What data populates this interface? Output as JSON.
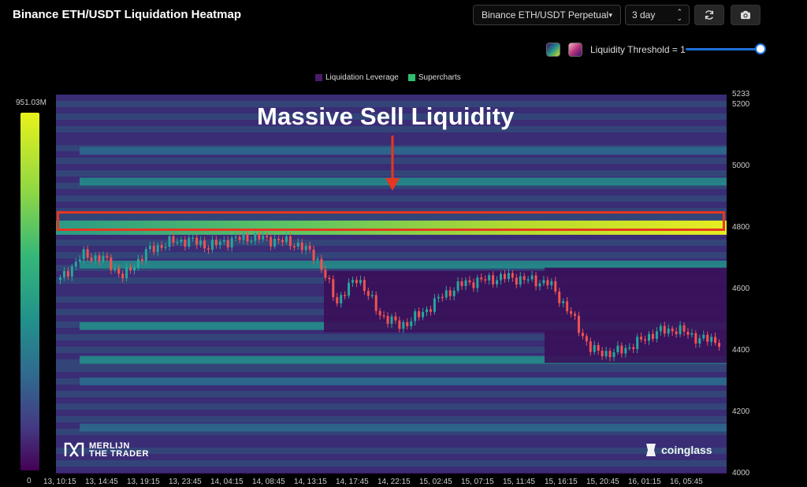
{
  "header": {
    "title": "Binance ETH/USDT Liquidation Heatmap"
  },
  "controls": {
    "pair_select": "Binance ETH/USDT Perpetual",
    "range_select": "3 day",
    "threshold_label": "Liquidity Threshold = 1",
    "threshold_value": 1
  },
  "icons": {
    "refresh": "refresh-icon",
    "camera": "camera-icon",
    "dropdown": "chevron-down-icon",
    "stepper": "up-down-arrows-icon"
  },
  "legend": [
    {
      "label": "Liquidation Leverage",
      "color": "#4a1a6b"
    },
    {
      "label": "Supercharts",
      "color": "#2fbf71"
    }
  ],
  "scale": {
    "max_label": "951.03M",
    "min_label": "0"
  },
  "annotation": {
    "text": "Massive Sell Liquidity",
    "highlight_color": "#e8361f",
    "arrow_color": "#e8361f"
  },
  "watermarks": {
    "left": "MERLIJN THE TRADER",
    "left_line1": "MERLIJN",
    "left_line2": "THE TRADER",
    "right": "coinglass"
  },
  "chart_data": {
    "type": "heatmap",
    "title": "Binance ETH/USDT Liquidation Heatmap",
    "y_ticks": [
      "5233",
      "5200",
      "5000",
      "4800",
      "4600",
      "4400",
      "4200",
      "4000"
    ],
    "y_tick_values": [
      5233,
      5200,
      5000,
      4800,
      4600,
      4400,
      4200,
      4000
    ],
    "ylim": [
      4000,
      5233
    ],
    "x_ticks": [
      "13, 10:15",
      "13, 14:45",
      "13, 19:15",
      "13, 23:45",
      "14, 04:15",
      "14, 08:45",
      "14, 13:15",
      "14, 17:45",
      "14, 22:15",
      "15, 02:45",
      "15, 07:15",
      "15, 11:45",
      "15, 16:15",
      "15, 20:45",
      "16, 01:15",
      "16, 05:45"
    ],
    "colorbar": {
      "min": 0,
      "max_label": "951.03M"
    },
    "liquidity_bands": [
      {
        "price": 4800,
        "intensity": 1.0,
        "label": "Massive Sell Liquidity"
      },
      {
        "price": 4950,
        "intensity": 0.45
      },
      {
        "price": 5050,
        "intensity": 0.35
      },
      {
        "price": 4680,
        "intensity": 0.55
      },
      {
        "price": 4480,
        "intensity": 0.5
      },
      {
        "price": 4370,
        "intensity": 0.45
      },
      {
        "price": 4300,
        "intensity": 0.35
      },
      {
        "price": 4150,
        "intensity": 0.3
      }
    ],
    "price_series": [
      {
        "t": "13, 10:15",
        "p": 4630
      },
      {
        "t": "13, 12:30",
        "p": 4710
      },
      {
        "t": "13, 14:45",
        "p": 4700
      },
      {
        "t": "13, 17:00",
        "p": 4640
      },
      {
        "t": "13, 19:15",
        "p": 4720
      },
      {
        "t": "13, 21:30",
        "p": 4750
      },
      {
        "t": "13, 23:45",
        "p": 4760
      },
      {
        "t": "14, 02:00",
        "p": 4740
      },
      {
        "t": "14, 04:15",
        "p": 4760
      },
      {
        "t": "14, 06:30",
        "p": 4770
      },
      {
        "t": "14, 08:45",
        "p": 4760
      },
      {
        "t": "14, 11:00",
        "p": 4750
      },
      {
        "t": "14, 13:15",
        "p": 4710
      },
      {
        "t": "14, 15:30",
        "p": 4560
      },
      {
        "t": "14, 17:45",
        "p": 4640
      },
      {
        "t": "14, 20:00",
        "p": 4520
      },
      {
        "t": "14, 22:15",
        "p": 4480
      },
      {
        "t": "15, 00:30",
        "p": 4520
      },
      {
        "t": "15, 02:45",
        "p": 4580
      },
      {
        "t": "15, 05:00",
        "p": 4620
      },
      {
        "t": "15, 07:15",
        "p": 4630
      },
      {
        "t": "15, 09:30",
        "p": 4640
      },
      {
        "t": "15, 11:45",
        "p": 4630
      },
      {
        "t": "15, 14:00",
        "p": 4620
      },
      {
        "t": "15, 16:15",
        "p": 4520
      },
      {
        "t": "15, 18:30",
        "p": 4400
      },
      {
        "t": "15, 20:45",
        "p": 4390
      },
      {
        "t": "15, 23:00",
        "p": 4420
      },
      {
        "t": "16, 01:15",
        "p": 4460
      },
      {
        "t": "16, 03:30",
        "p": 4470
      },
      {
        "t": "16, 05:45",
        "p": 4440
      },
      {
        "t": "16, 08:00",
        "p": 4430
      }
    ]
  }
}
